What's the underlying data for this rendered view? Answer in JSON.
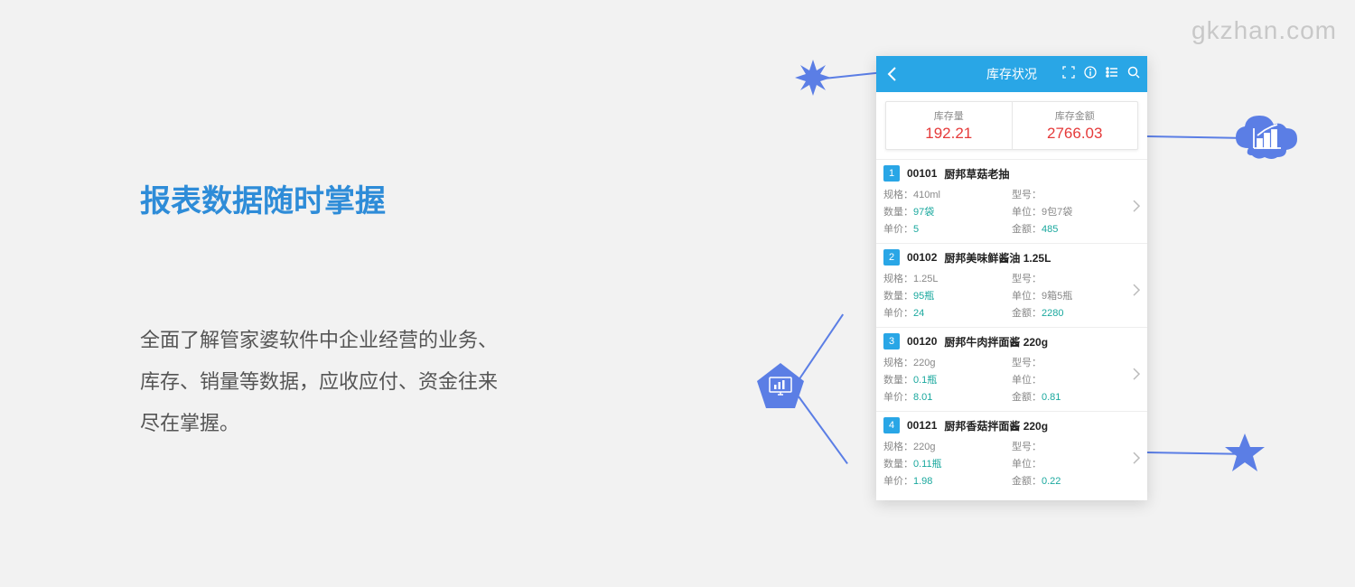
{
  "watermark": "gkzhan.com",
  "heading": "报表数据随时掌握",
  "description_l1": "全面了解管家婆软件中企业经营的业务、",
  "description_l2": "库存、销量等数据，应收应付、资金往来",
  "description_l3": "尽在掌握。",
  "phone": {
    "title": "库存状况",
    "summary": {
      "qty_label": "库存量",
      "qty_value": "192.21",
      "amt_label": "库存金额",
      "amt_value": "2766.03"
    },
    "field_labels": {
      "spec": "规格：",
      "model": "型号：",
      "qty": "数量：",
      "unit": "单位：",
      "price": "单价：",
      "amount": "金额："
    },
    "items": [
      {
        "n": "1",
        "code": "00101",
        "name": "厨邦草菇老抽",
        "spec": "410ml",
        "model": "",
        "qty": "97袋",
        "unit": "9包7袋",
        "price": "5",
        "amount": "485"
      },
      {
        "n": "2",
        "code": "00102",
        "name": "厨邦美味鲜酱油 1.25L",
        "spec": "1.25L",
        "model": "",
        "qty": "95瓶",
        "unit": "9箱5瓶",
        "price": "24",
        "amount": "2280"
      },
      {
        "n": "3",
        "code": "00120",
        "name": "厨邦牛肉拌面酱 220g",
        "spec": "220g",
        "model": "",
        "qty": "0.1瓶",
        "unit": "",
        "price": "8.01",
        "amount": "0.81"
      },
      {
        "n": "4",
        "code": "00121",
        "name": "厨邦香菇拌面酱 220g",
        "spec": "220g",
        "model": "",
        "qty": "0.11瓶",
        "unit": "",
        "price": "1.98",
        "amount": "0.22"
      }
    ]
  },
  "colors": {
    "accent_blue": "#2e8cd8",
    "header_blue": "#29a6e6",
    "shape_blue": "#5b7ee5",
    "red": "#e53a3a",
    "teal": "#1aa89e",
    "bg": "#f2f2f2"
  }
}
